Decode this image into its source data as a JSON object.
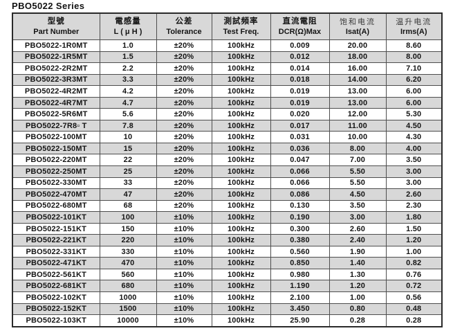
{
  "page": {
    "title": "PBO5022 Series"
  },
  "colors": {
    "stripe_gray": "#d8d8d8",
    "border": "#4d4d4d",
    "text": "#141414",
    "background": "#ffffff"
  },
  "table": {
    "columns": [
      {
        "zh": "型號",
        "en": "Part Number"
      },
      {
        "zh": "電感量",
        "en": "L ( μ H )"
      },
      {
        "zh": "公差",
        "en": "Tolerance"
      },
      {
        "zh": "測試頻率",
        "en": "Test Freq."
      },
      {
        "zh": "直流電阻",
        "en": "DCR(Ω)Max"
      },
      {
        "zh": "饱和电流",
        "en": "Isat(A)"
      },
      {
        "zh": "温升电流",
        "en": "Irms(A)"
      }
    ],
    "rows": [
      [
        "PBO5022-1R0MT",
        "1.0",
        "±20%",
        "100kHz",
        "0.009",
        "20.00",
        "8.60"
      ],
      [
        "PBO5022-1R5MT",
        "1.5",
        "±20%",
        "100kHz",
        "0.012",
        "18.00",
        "8.00"
      ],
      [
        "PBO5022-2R2MT",
        "2.2",
        "±20%",
        "100kHz",
        "0.014",
        "16.00",
        "7.10"
      ],
      [
        "PBO5022-3R3MT",
        "3.3",
        "±20%",
        "100kHz",
        "0.018",
        "14.00",
        "6.20"
      ],
      [
        "PBO5022-4R2MT",
        "4.2",
        "±20%",
        "100kHz",
        "0.019",
        "13.00",
        "6.00"
      ],
      [
        "PBO5022-4R7MT",
        "4.7",
        "±20%",
        "100kHz",
        "0.019",
        "13.00",
        "6.00"
      ],
      [
        "PBO5022-5R6MT",
        "5.6",
        "±20%",
        "100kHz",
        "0.020",
        "12.00",
        "5.30"
      ],
      [
        "PBO5022-7R8▫ T",
        "7.8",
        "±20%",
        "100kHz",
        "0.017",
        "11.00",
        "4.50"
      ],
      [
        "PBO5022-100MT",
        "10",
        "±20%",
        "100kHz",
        "0.031",
        "10.00",
        "4.30"
      ],
      [
        "PBO5022-150MT",
        "15",
        "±20%",
        "100kHz",
        "0.036",
        "8.00",
        "4.00"
      ],
      [
        "PBO5022-220MT",
        "22",
        "±20%",
        "100kHz",
        "0.047",
        "7.00",
        "3.50"
      ],
      [
        "PBO5022-250MT",
        "25",
        "±20%",
        "100kHz",
        "0.066",
        "5.50",
        "3.00"
      ],
      [
        "PBO5022-330MT",
        "33",
        "±20%",
        "100kHz",
        "0.066",
        "5.50",
        "3.00"
      ],
      [
        "PBO5022-470MT",
        "47",
        "±20%",
        "100kHz",
        "0.086",
        "4.50",
        "2.60"
      ],
      [
        "PBO5022-680MT",
        "68",
        "±20%",
        "100kHz",
        "0.130",
        "3.50",
        "2.30"
      ],
      [
        "PBO5022-101KT",
        "100",
        "±10%",
        "100kHz",
        "0.190",
        "3.00",
        "1.80"
      ],
      [
        "PBO5022-151KT",
        "150",
        "±10%",
        "100kHz",
        "0.300",
        "2.60",
        "1.50"
      ],
      [
        "PBO5022-221KT",
        "220",
        "±10%",
        "100kHz",
        "0.380",
        "2.40",
        "1.20"
      ],
      [
        "PBO5022-331KT",
        "330",
        "±10%",
        "100kHz",
        "0.560",
        "1.90",
        "1.00"
      ],
      [
        "PBO5022-471KT",
        "470",
        "±10%",
        "100kHz",
        "0.850",
        "1.40",
        "0.82"
      ],
      [
        "PBO5022-561KT",
        "560",
        "±10%",
        "100kHz",
        "0.980",
        "1.30",
        "0.76"
      ],
      [
        "PBO5022-681KT",
        "680",
        "±10%",
        "100kHz",
        "1.190",
        "1.20",
        "0.72"
      ],
      [
        "PBO5022-102KT",
        "1000",
        "±10%",
        "100kHz",
        "2.100",
        "1.00",
        "0.56"
      ],
      [
        "PBO5022-152KT",
        "1500",
        "±10%",
        "100kHz",
        "3.450",
        "0.80",
        "0.48"
      ],
      [
        "PBO5022-103KT",
        "10000",
        "±10%",
        "100kHz",
        "25.90",
        "0.28",
        "0.28"
      ]
    ]
  }
}
